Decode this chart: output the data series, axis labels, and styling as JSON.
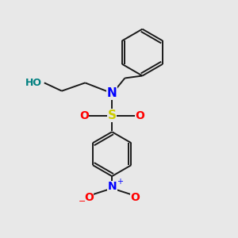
{
  "background_color": "#e8e8e8",
  "bond_color": "#1a1a1a",
  "N_color": "#0000ff",
  "O_color": "#ff0000",
  "S_color": "#cccc00",
  "H_color": "#008080",
  "figsize": [
    3.0,
    3.0
  ],
  "dpi": 100,
  "xlim": [
    0,
    10
  ],
  "ylim": [
    0,
    10
  ],
  "lw": 1.4
}
